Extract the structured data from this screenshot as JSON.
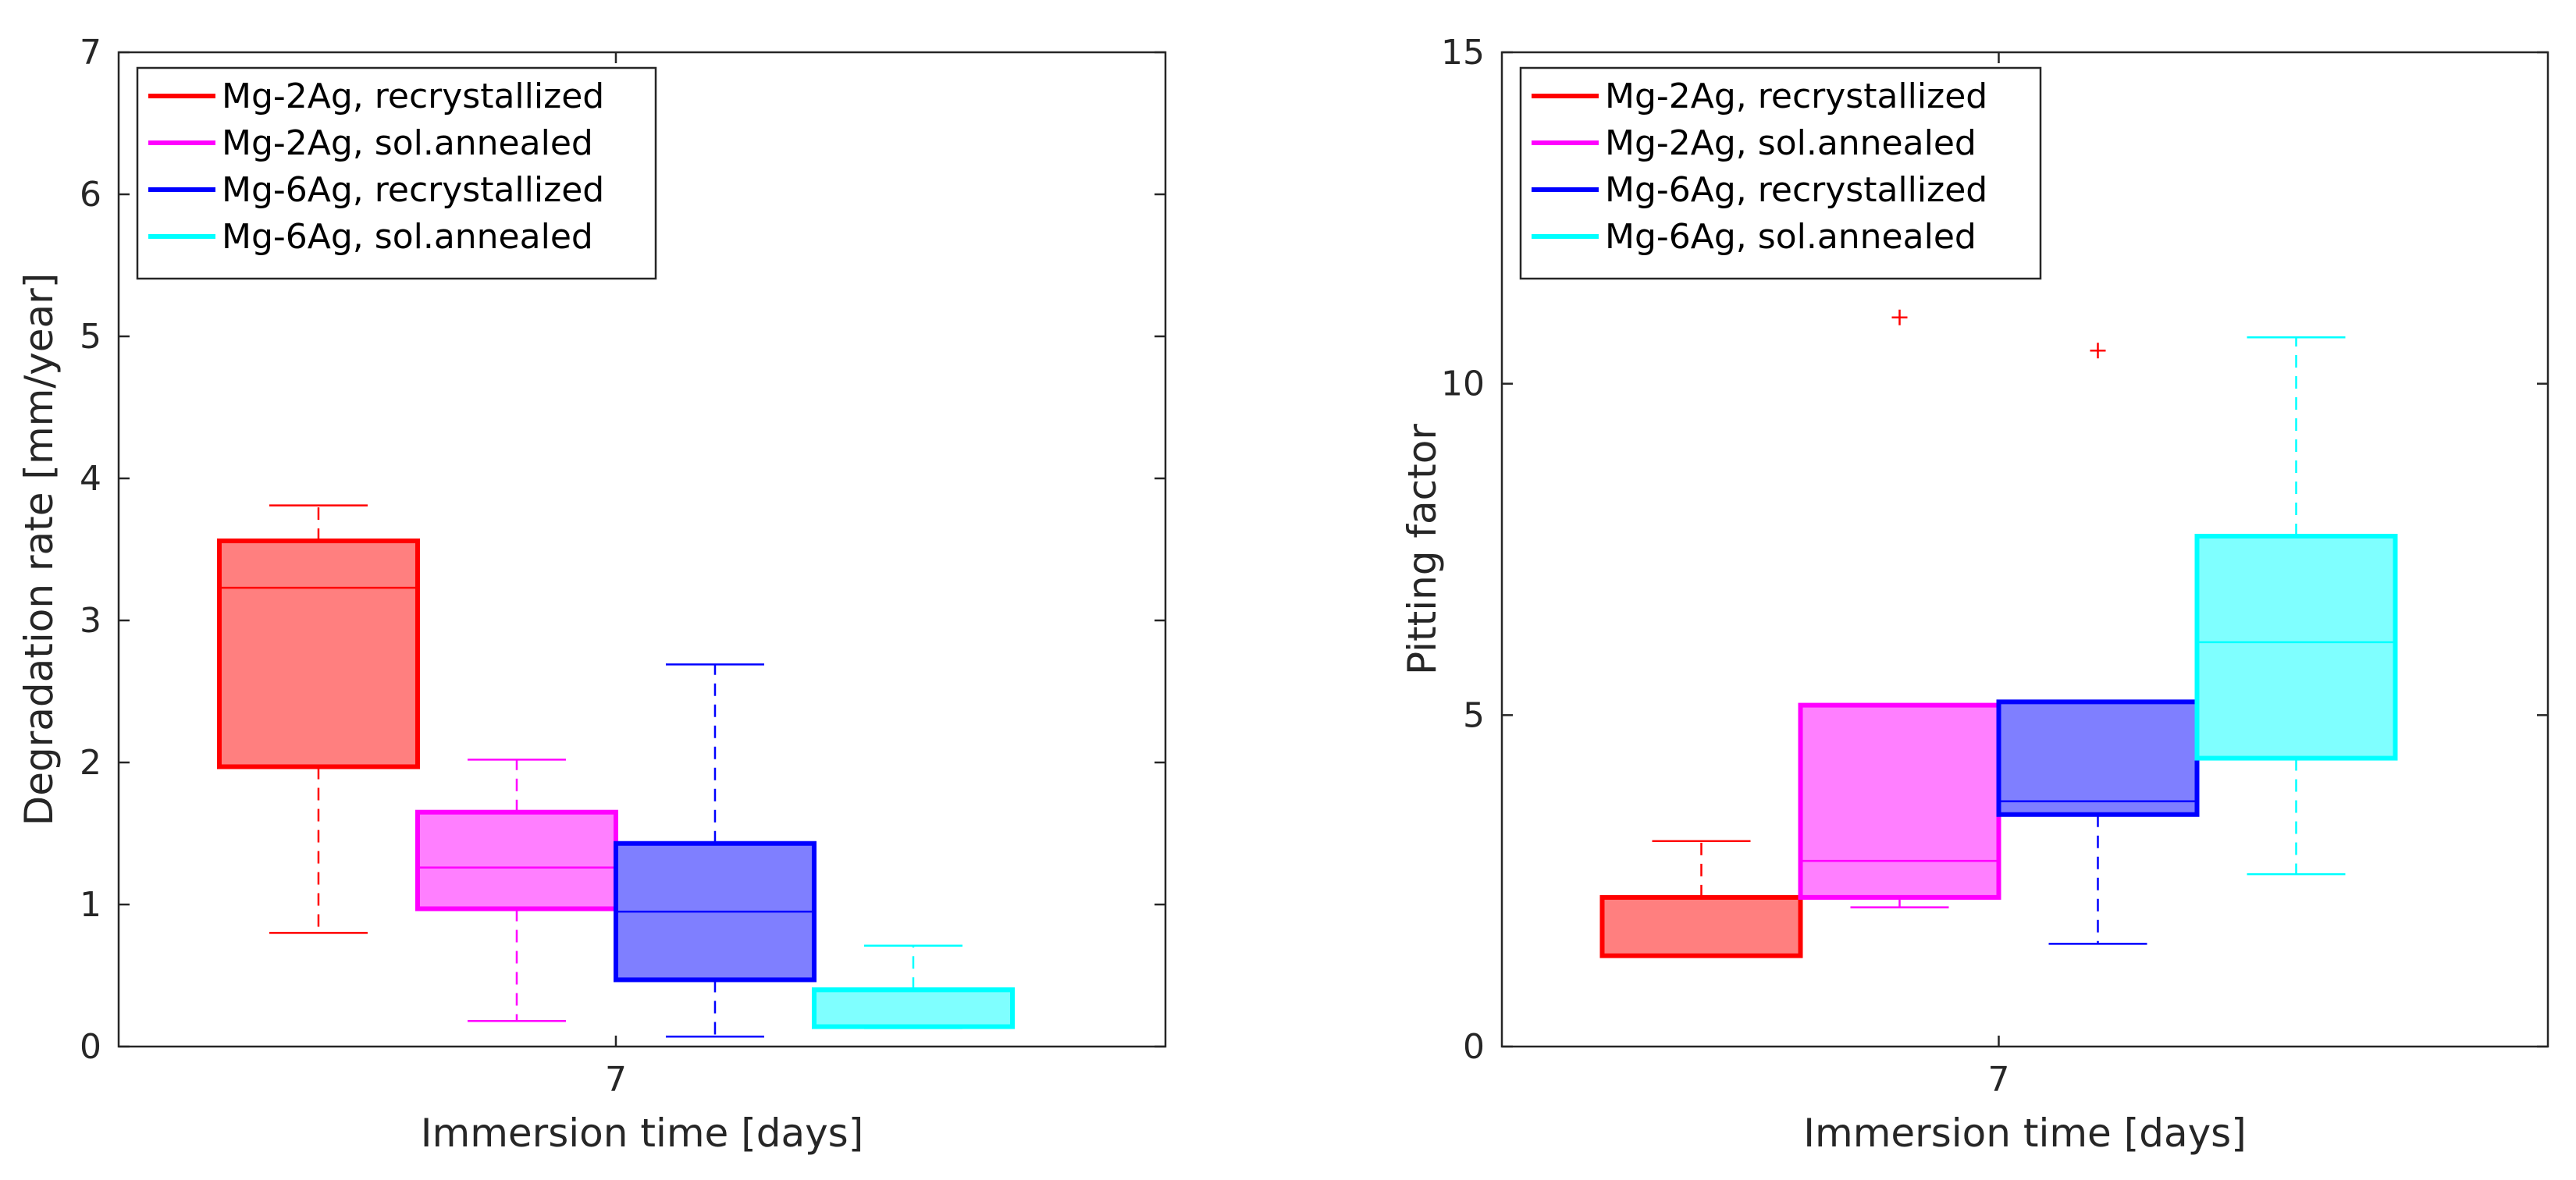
{
  "chart_data": [
    {
      "type": "box",
      "id": "degradation",
      "xlabel": "Immersion time [days]",
      "ylabel": "Degradation rate [mm/year]",
      "x_tick_labels": [
        "7"
      ],
      "ylim": [
        0,
        7
      ],
      "yticks": [
        0,
        1,
        2,
        3,
        4,
        5,
        6,
        7
      ],
      "legend_position": "top-left",
      "series": [
        {
          "name": "Mg-2Ag, recrystallized",
          "color": "#ff0000",
          "whisker_low": 0.8,
          "q1": 1.97,
          "median": 3.23,
          "q3": 3.56,
          "whisker_high": 3.81,
          "outliers": []
        },
        {
          "name": "Mg-2Ag, sol.annealed",
          "color": "#ff00ff",
          "whisker_low": 0.18,
          "q1": 0.97,
          "median": 1.26,
          "q3": 1.65,
          "whisker_high": 2.02,
          "outliers": []
        },
        {
          "name": "Mg-6Ag, recrystallized",
          "color": "#0000ff",
          "whisker_low": 0.07,
          "q1": 0.47,
          "median": 0.95,
          "q3": 1.43,
          "whisker_high": 2.69,
          "outliers": []
        },
        {
          "name": "Mg-6Ag, sol.annealed",
          "color": "#00ffff",
          "whisker_low": 0.13,
          "q1": 0.14,
          "median": 0.39,
          "q3": 0.4,
          "whisker_high": 0.71,
          "outliers": []
        }
      ]
    },
    {
      "type": "box",
      "id": "pitting",
      "xlabel": "Immersion time [days]",
      "ylabel": "Pitting factor",
      "x_tick_labels": [
        "7"
      ],
      "ylim": [
        0,
        15
      ],
      "yticks": [
        0,
        5,
        10,
        15
      ],
      "legend_position": "top-left",
      "series": [
        {
          "name": "Mg-2Ag, recrystallized",
          "color": "#ff0000",
          "whisker_low": 1.37,
          "q1": 1.37,
          "median": 1.38,
          "q3": 2.25,
          "whisker_high": 3.1,
          "outliers": []
        },
        {
          "name": "Mg-2Ag, sol.annealed",
          "color": "#ff00ff",
          "whisker_low": 2.1,
          "q1": 2.25,
          "median": 2.8,
          "q3": 5.15,
          "whisker_high": 5.15,
          "outliers": [
            {
              "value": 11.0,
              "marker_color": "#ff0000"
            }
          ]
        },
        {
          "name": "Mg-6Ag, recrystallized",
          "color": "#0000ff",
          "whisker_low": 1.55,
          "q1": 3.5,
          "median": 3.7,
          "q3": 5.2,
          "whisker_high": 5.2,
          "outliers": [
            {
              "value": 10.5,
              "marker_color": "#ff0000"
            }
          ]
        },
        {
          "name": "Mg-6Ag, sol.annealed",
          "color": "#00ffff",
          "whisker_low": 2.6,
          "q1": 4.35,
          "median": 6.1,
          "q3": 7.7,
          "whisker_high": 10.7,
          "outliers": []
        }
      ]
    }
  ]
}
